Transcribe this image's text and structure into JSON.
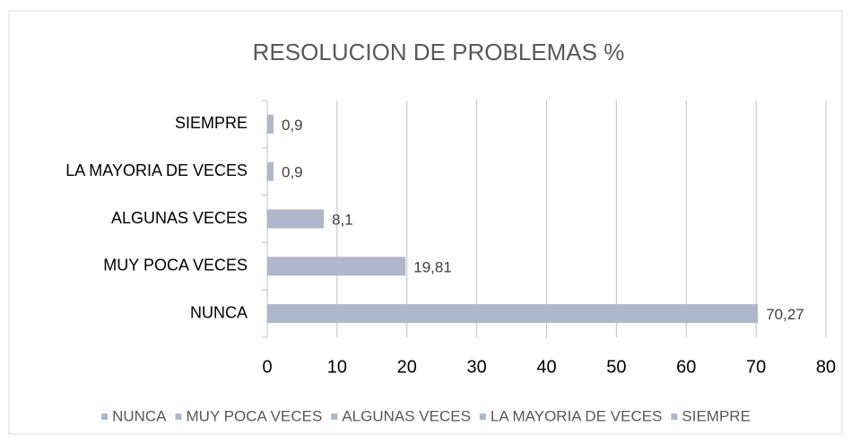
{
  "chart_data": {
    "type": "hbar",
    "title": "RESOLUCION DE PROBLEMAS %",
    "categories": [
      "NUNCA",
      "MUY POCA VECES",
      "ALGUNAS VECES",
      "LA MAYORIA DE VECES",
      "SIEMPRE"
    ],
    "values": [
      70.27,
      19.81,
      8.1,
      0.9,
      0.9
    ],
    "value_labels": [
      "70,27",
      "19,81",
      "8,1",
      "0,9",
      "0,9"
    ],
    "color": "#adb9ca",
    "xlim": [
      0,
      80
    ],
    "xticks": [
      0,
      10,
      20,
      30,
      40,
      50,
      60,
      70,
      80
    ],
    "grid": true,
    "legend": "bottom"
  }
}
